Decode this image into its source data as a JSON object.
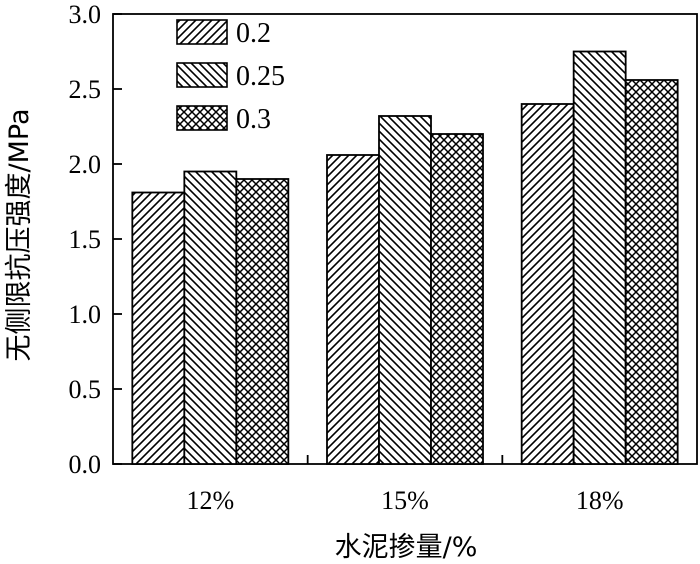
{
  "chart_data": {
    "type": "bar",
    "categories": [
      "12%",
      "15%",
      "18%"
    ],
    "series": [
      {
        "name": "0.2",
        "values": [
          1.81,
          2.06,
          2.4
        ],
        "pattern": "hatch-forward"
      },
      {
        "name": "0.25",
        "values": [
          1.95,
          2.32,
          2.75
        ],
        "pattern": "hatch-backward"
      },
      {
        "name": "0.3",
        "values": [
          1.9,
          2.2,
          2.56
        ],
        "pattern": "crosshatch"
      }
    ],
    "xlabel": "水泥掺量/%",
    "ylabel": "无侧限抗压强度/MPa",
    "ylim": [
      0,
      3.0
    ],
    "yticks": [
      "0.0",
      "0.5",
      "1.0",
      "1.5",
      "2.0",
      "2.5",
      "3.0"
    ],
    "legend_position": "top-left",
    "grid": false,
    "colors": {
      "stroke": "#000000",
      "fill": "#ffffff"
    }
  }
}
